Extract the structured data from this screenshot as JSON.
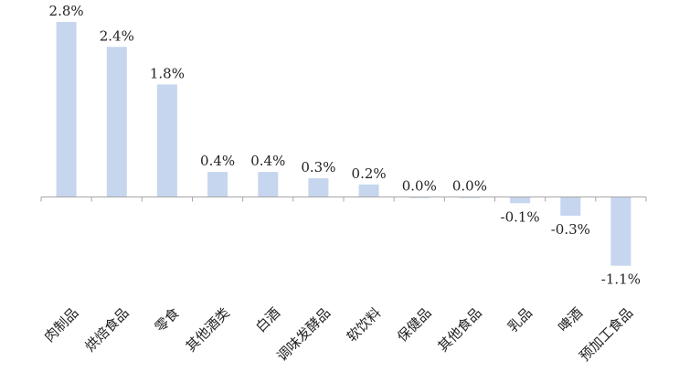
{
  "chart_data": {
    "type": "bar",
    "title": "",
    "xlabel": "",
    "ylabel": "",
    "categories": [
      "肉制品",
      "烘焙食品",
      "零食",
      "其他酒类",
      "白酒",
      "调味发酵品",
      "软饮料",
      "保健品",
      "其他食品",
      "乳品",
      "啤酒",
      "预加工食品"
    ],
    "values": [
      2.8,
      2.4,
      1.8,
      0.4,
      0.4,
      0.3,
      0.2,
      0.0,
      0.0,
      -0.1,
      -0.3,
      -1.1
    ],
    "value_labels": [
      "2.8%",
      "2.4%",
      "1.8%",
      "0.4%",
      "0.4%",
      "0.3%",
      "0.2%",
      "0.0%",
      "0.0%",
      "-0.1%",
      "-0.3%",
      "-1.1%"
    ],
    "ylim": [
      -1.1,
      2.8
    ],
    "grid": false,
    "legend": "none",
    "colors": {
      "bar": "#c6d6ee",
      "axis": "#a6a6a6",
      "text": "#222222"
    }
  }
}
